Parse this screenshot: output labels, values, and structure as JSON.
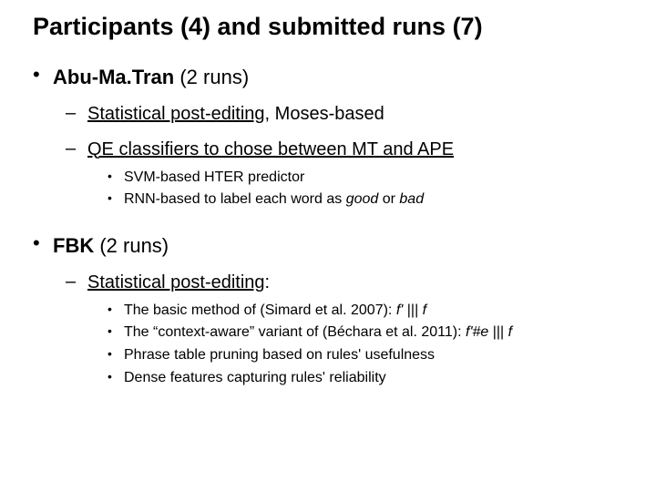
{
  "title": "Participants (4) and submitted runs (7)",
  "sections": [
    {
      "name_bold": "Abu-Ma.Tran",
      "suffix": " (2 runs)",
      "subs": [
        {
          "prefix_u": "Statistical post-editing",
          "rest": ", Moses-based",
          "items": []
        },
        {
          "prefix_u": "QE classifiers to chose between MT and APE",
          "rest": "",
          "items": [
            {
              "text": "SVM-based HTER predictor"
            },
            {
              "html": "RNN-based to label each word as <span class=\"italic\">good</span> or <span class=\"italic\">bad</span>"
            }
          ]
        }
      ]
    },
    {
      "name_bold": "FBK",
      "suffix": " (2 runs)",
      "subs": [
        {
          "prefix_u": "Statistical post-editing",
          "rest": ":",
          "items": [
            {
              "html": "The basic method of (Simard et al. 2007): <span class=\"italic\">f'</span> ||| <span class=\"italic\">f</span>"
            },
            {
              "html": "The “context-aware” variant of (Béchara et al. 2011): <span class=\"italic\">f'#e</span> ||| <span class=\"italic\">f</span>"
            },
            {
              "text": "Phrase table pruning based on rules' usefulness"
            },
            {
              "text": "Dense features capturing rules' reliability"
            }
          ]
        }
      ]
    }
  ]
}
